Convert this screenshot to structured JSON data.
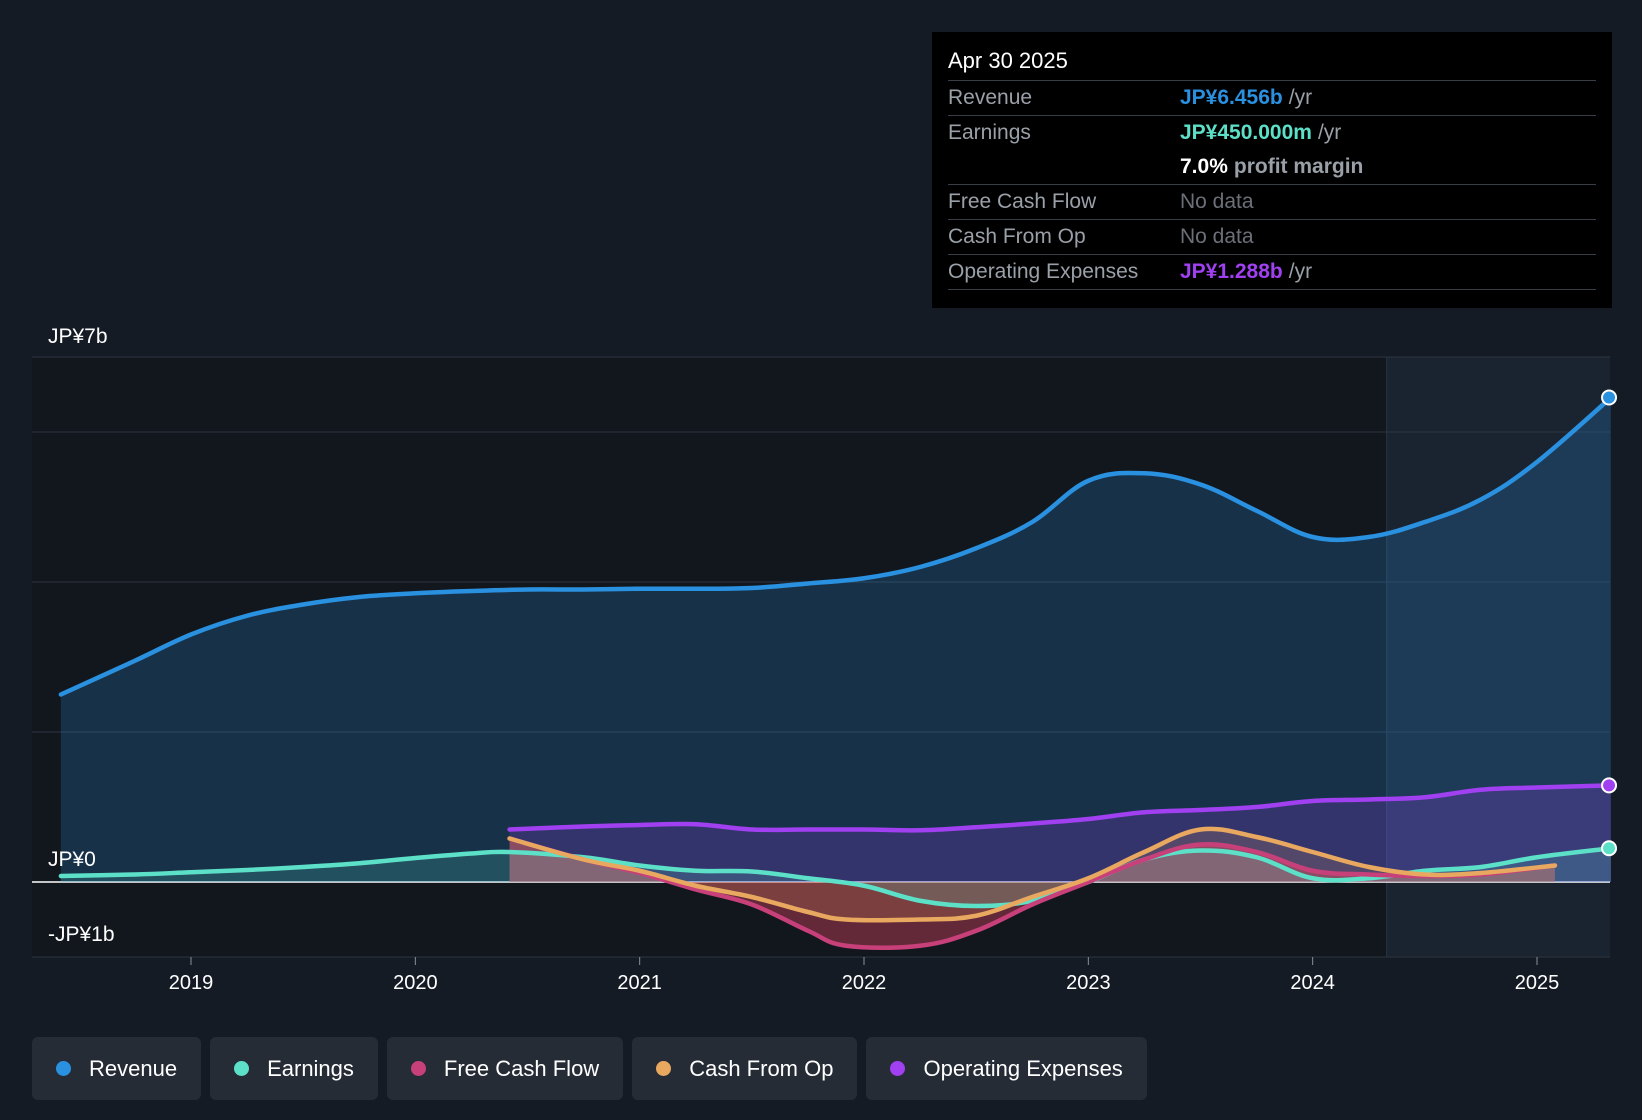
{
  "colors": {
    "revenue": "#2a90e0",
    "earnings": "#5de0c8",
    "fcf": "#c8407a",
    "cfo": "#e8a860",
    "opex": "#a040f0"
  },
  "tooltip": {
    "date": "Apr 30 2025",
    "rows": [
      {
        "label": "Revenue",
        "value": "JP¥6.456b",
        "unit": "/yr"
      },
      {
        "label": "Earnings",
        "value": "JP¥450.000m",
        "unit": "/yr"
      },
      {
        "label": "",
        "value": "7.0%",
        "unit": "profit margin"
      },
      {
        "label": "Free Cash Flow",
        "value": "No data",
        "unit": ""
      },
      {
        "label": "Cash From Op",
        "value": "No data",
        "unit": ""
      },
      {
        "label": "Operating Expenses",
        "value": "JP¥1.288b",
        "unit": "/yr"
      }
    ]
  },
  "legend": [
    {
      "label": "Revenue"
    },
    {
      "label": "Earnings"
    },
    {
      "label": "Free Cash Flow"
    },
    {
      "label": "Cash From Op"
    },
    {
      "label": "Operating Expenses"
    }
  ],
  "chart_data": {
    "type": "area",
    "title": "",
    "xlabel": "",
    "ylabel": "",
    "ylim": [
      -1,
      7
    ],
    "xlim": [
      2018.3,
      2025.33
    ],
    "y_tick_labels": [
      {
        "value": 7,
        "label": "JP¥7b"
      },
      {
        "value": 0,
        "label": "JP¥0"
      },
      {
        "value": -1,
        "label": "-JP¥1b"
      }
    ],
    "gridlines": [
      7,
      6,
      4,
      2,
      0,
      -1
    ],
    "x_ticks": [
      {
        "value": 2019,
        "label": "2019"
      },
      {
        "value": 2020,
        "label": "2020"
      },
      {
        "value": 2021,
        "label": "2021"
      },
      {
        "value": 2022,
        "label": "2022"
      },
      {
        "value": 2023,
        "label": "2023"
      },
      {
        "value": 2024,
        "label": "2024"
      },
      {
        "value": 2025,
        "label": "2025"
      }
    ],
    "forecast_start": 2024.33,
    "series": [
      {
        "name": "Revenue",
        "key": "revenue",
        "points": [
          [
            2018.42,
            2.5
          ],
          [
            2018.75,
            2.95
          ],
          [
            2019.0,
            3.3
          ],
          [
            2019.25,
            3.55
          ],
          [
            2019.5,
            3.7
          ],
          [
            2019.75,
            3.8
          ],
          [
            2020.0,
            3.85
          ],
          [
            2020.25,
            3.88
          ],
          [
            2020.5,
            3.9
          ],
          [
            2020.75,
            3.9
          ],
          [
            2021.0,
            3.91
          ],
          [
            2021.25,
            3.91
          ],
          [
            2021.5,
            3.92
          ],
          [
            2021.75,
            3.98
          ],
          [
            2022.0,
            4.05
          ],
          [
            2022.25,
            4.2
          ],
          [
            2022.5,
            4.45
          ],
          [
            2022.75,
            4.8
          ],
          [
            2023.0,
            5.35
          ],
          [
            2023.25,
            5.45
          ],
          [
            2023.5,
            5.3
          ],
          [
            2023.75,
            4.95
          ],
          [
            2024.0,
            4.6
          ],
          [
            2024.25,
            4.6
          ],
          [
            2024.5,
            4.8
          ],
          [
            2024.75,
            5.1
          ],
          [
            2025.0,
            5.6
          ],
          [
            2025.33,
            6.46
          ]
        ]
      },
      {
        "name": "Earnings",
        "key": "earnings",
        "points": [
          [
            2018.42,
            0.08
          ],
          [
            2018.75,
            0.1
          ],
          [
            2019.0,
            0.13
          ],
          [
            2019.25,
            0.16
          ],
          [
            2019.5,
            0.2
          ],
          [
            2019.75,
            0.25
          ],
          [
            2020.0,
            0.32
          ],
          [
            2020.25,
            0.38
          ],
          [
            2020.42,
            0.4
          ],
          [
            2020.75,
            0.33
          ],
          [
            2021.0,
            0.22
          ],
          [
            2021.25,
            0.15
          ],
          [
            2021.5,
            0.14
          ],
          [
            2021.75,
            0.05
          ],
          [
            2022.0,
            -0.05
          ],
          [
            2022.25,
            -0.25
          ],
          [
            2022.5,
            -0.32
          ],
          [
            2022.75,
            -0.25
          ],
          [
            2023.0,
            0.0
          ],
          [
            2023.25,
            0.3
          ],
          [
            2023.5,
            0.42
          ],
          [
            2023.75,
            0.33
          ],
          [
            2024.0,
            0.05
          ],
          [
            2024.25,
            0.05
          ],
          [
            2024.5,
            0.15
          ],
          [
            2024.75,
            0.2
          ],
          [
            2025.0,
            0.33
          ],
          [
            2025.33,
            0.45
          ]
        ]
      },
      {
        "name": "Free Cash Flow",
        "key": "fcf",
        "points": [
          [
            2020.42,
            0.58
          ],
          [
            2020.75,
            0.3
          ],
          [
            2021.0,
            0.12
          ],
          [
            2021.25,
            -0.1
          ],
          [
            2021.5,
            -0.3
          ],
          [
            2021.75,
            -0.65
          ],
          [
            2021.92,
            -0.85
          ],
          [
            2022.25,
            -0.85
          ],
          [
            2022.5,
            -0.65
          ],
          [
            2022.75,
            -0.3
          ],
          [
            2023.0,
            0.0
          ],
          [
            2023.25,
            0.3
          ],
          [
            2023.5,
            0.5
          ],
          [
            2023.75,
            0.4
          ],
          [
            2024.0,
            0.15
          ],
          [
            2024.25,
            0.1
          ],
          [
            2024.5,
            0.08
          ],
          [
            2024.75,
            0.1
          ],
          [
            2025.08,
            0.22
          ]
        ]
      },
      {
        "name": "Cash From Op",
        "key": "cfo",
        "points": [
          [
            2020.42,
            0.58
          ],
          [
            2020.75,
            0.3
          ],
          [
            2021.0,
            0.15
          ],
          [
            2021.25,
            -0.05
          ],
          [
            2021.5,
            -0.2
          ],
          [
            2021.75,
            -0.4
          ],
          [
            2021.92,
            -0.5
          ],
          [
            2022.25,
            -0.5
          ],
          [
            2022.5,
            -0.45
          ],
          [
            2022.75,
            -0.2
          ],
          [
            2023.0,
            0.05
          ],
          [
            2023.25,
            0.4
          ],
          [
            2023.5,
            0.7
          ],
          [
            2023.75,
            0.6
          ],
          [
            2024.0,
            0.4
          ],
          [
            2024.25,
            0.2
          ],
          [
            2024.5,
            0.1
          ],
          [
            2024.75,
            0.12
          ],
          [
            2025.08,
            0.22
          ]
        ]
      },
      {
        "name": "Operating Expenses",
        "key": "opex",
        "points": [
          [
            2020.42,
            0.7
          ],
          [
            2020.75,
            0.74
          ],
          [
            2021.0,
            0.76
          ],
          [
            2021.25,
            0.77
          ],
          [
            2021.5,
            0.7
          ],
          [
            2021.75,
            0.7
          ],
          [
            2022.0,
            0.7
          ],
          [
            2022.25,
            0.69
          ],
          [
            2022.5,
            0.73
          ],
          [
            2022.75,
            0.78
          ],
          [
            2023.0,
            0.84
          ],
          [
            2023.25,
            0.93
          ],
          [
            2023.5,
            0.96
          ],
          [
            2023.75,
            1.0
          ],
          [
            2024.0,
            1.08
          ],
          [
            2024.25,
            1.1
          ],
          [
            2024.5,
            1.13
          ],
          [
            2024.75,
            1.23
          ],
          [
            2025.0,
            1.26
          ],
          [
            2025.33,
            1.288
          ]
        ]
      }
    ]
  }
}
